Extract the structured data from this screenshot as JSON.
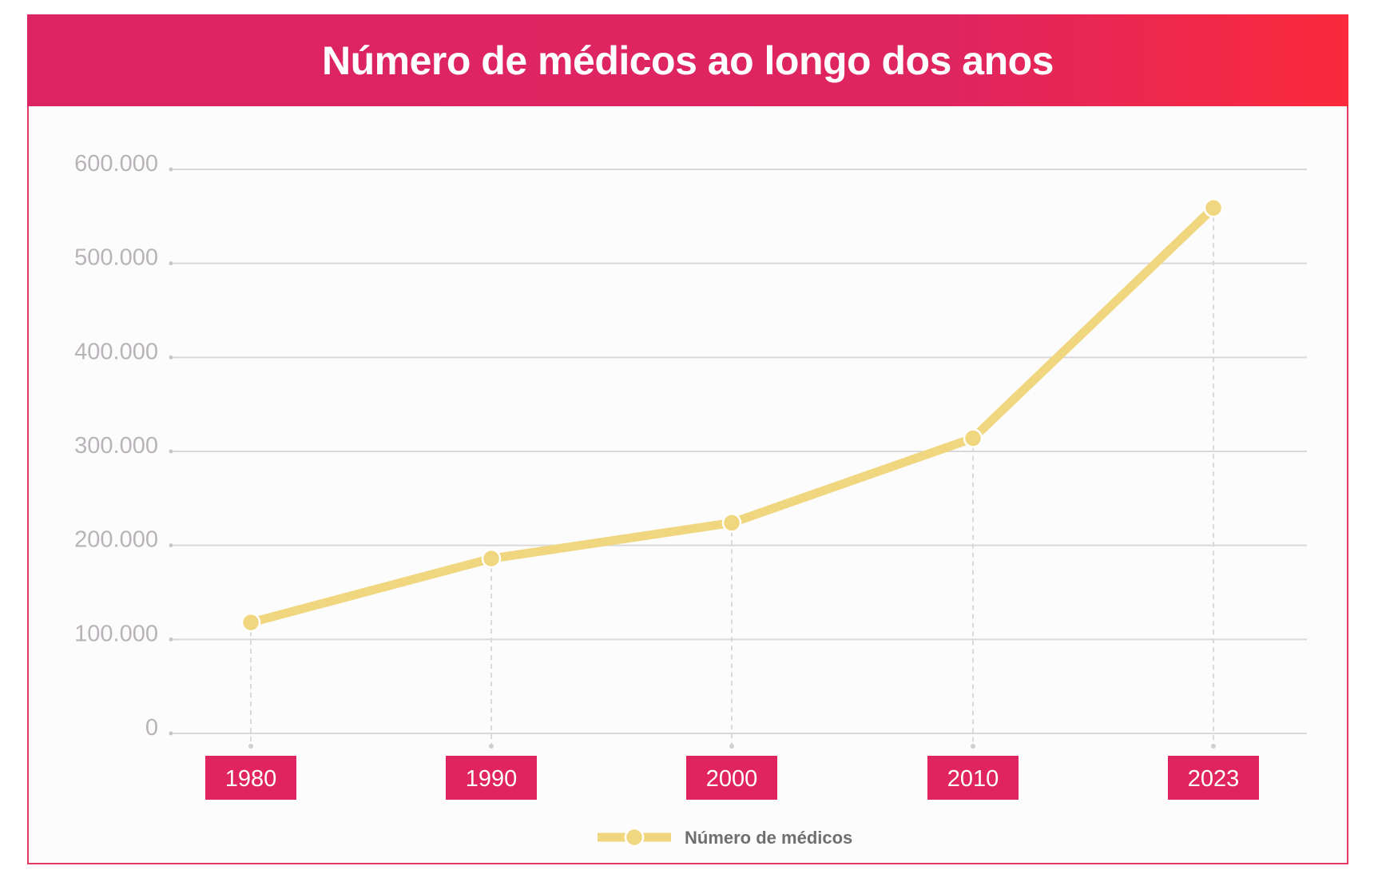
{
  "header": {
    "title": "Número de médicos ao longo dos anos"
  },
  "colors": {
    "header_start": "#dc2463",
    "header_end": "#fb2a3c",
    "line": "#f0d77f",
    "grid": "#d9d9dc",
    "tick_box": "#e0245f"
  },
  "chart_data": {
    "type": "line",
    "title": "Número de médicos ao longo dos anos",
    "xlabel": "",
    "ylabel": "",
    "categories": [
      "1980",
      "1990",
      "2000",
      "2010",
      "2023"
    ],
    "series": [
      {
        "name": "Número de médicos",
        "values": [
          118000,
          186000,
          224000,
          314000,
          559000
        ]
      }
    ],
    "ylim": [
      0,
      600000
    ],
    "yticks": [
      0,
      100000,
      200000,
      300000,
      400000,
      500000,
      600000
    ],
    "ytick_labels": [
      "0",
      "100.000",
      "200.000",
      "300.000",
      "400.000",
      "500.000",
      "600.000"
    ],
    "grid": true,
    "legend": {
      "position": "bottom-center",
      "entries": [
        "Número de médicos"
      ]
    }
  }
}
